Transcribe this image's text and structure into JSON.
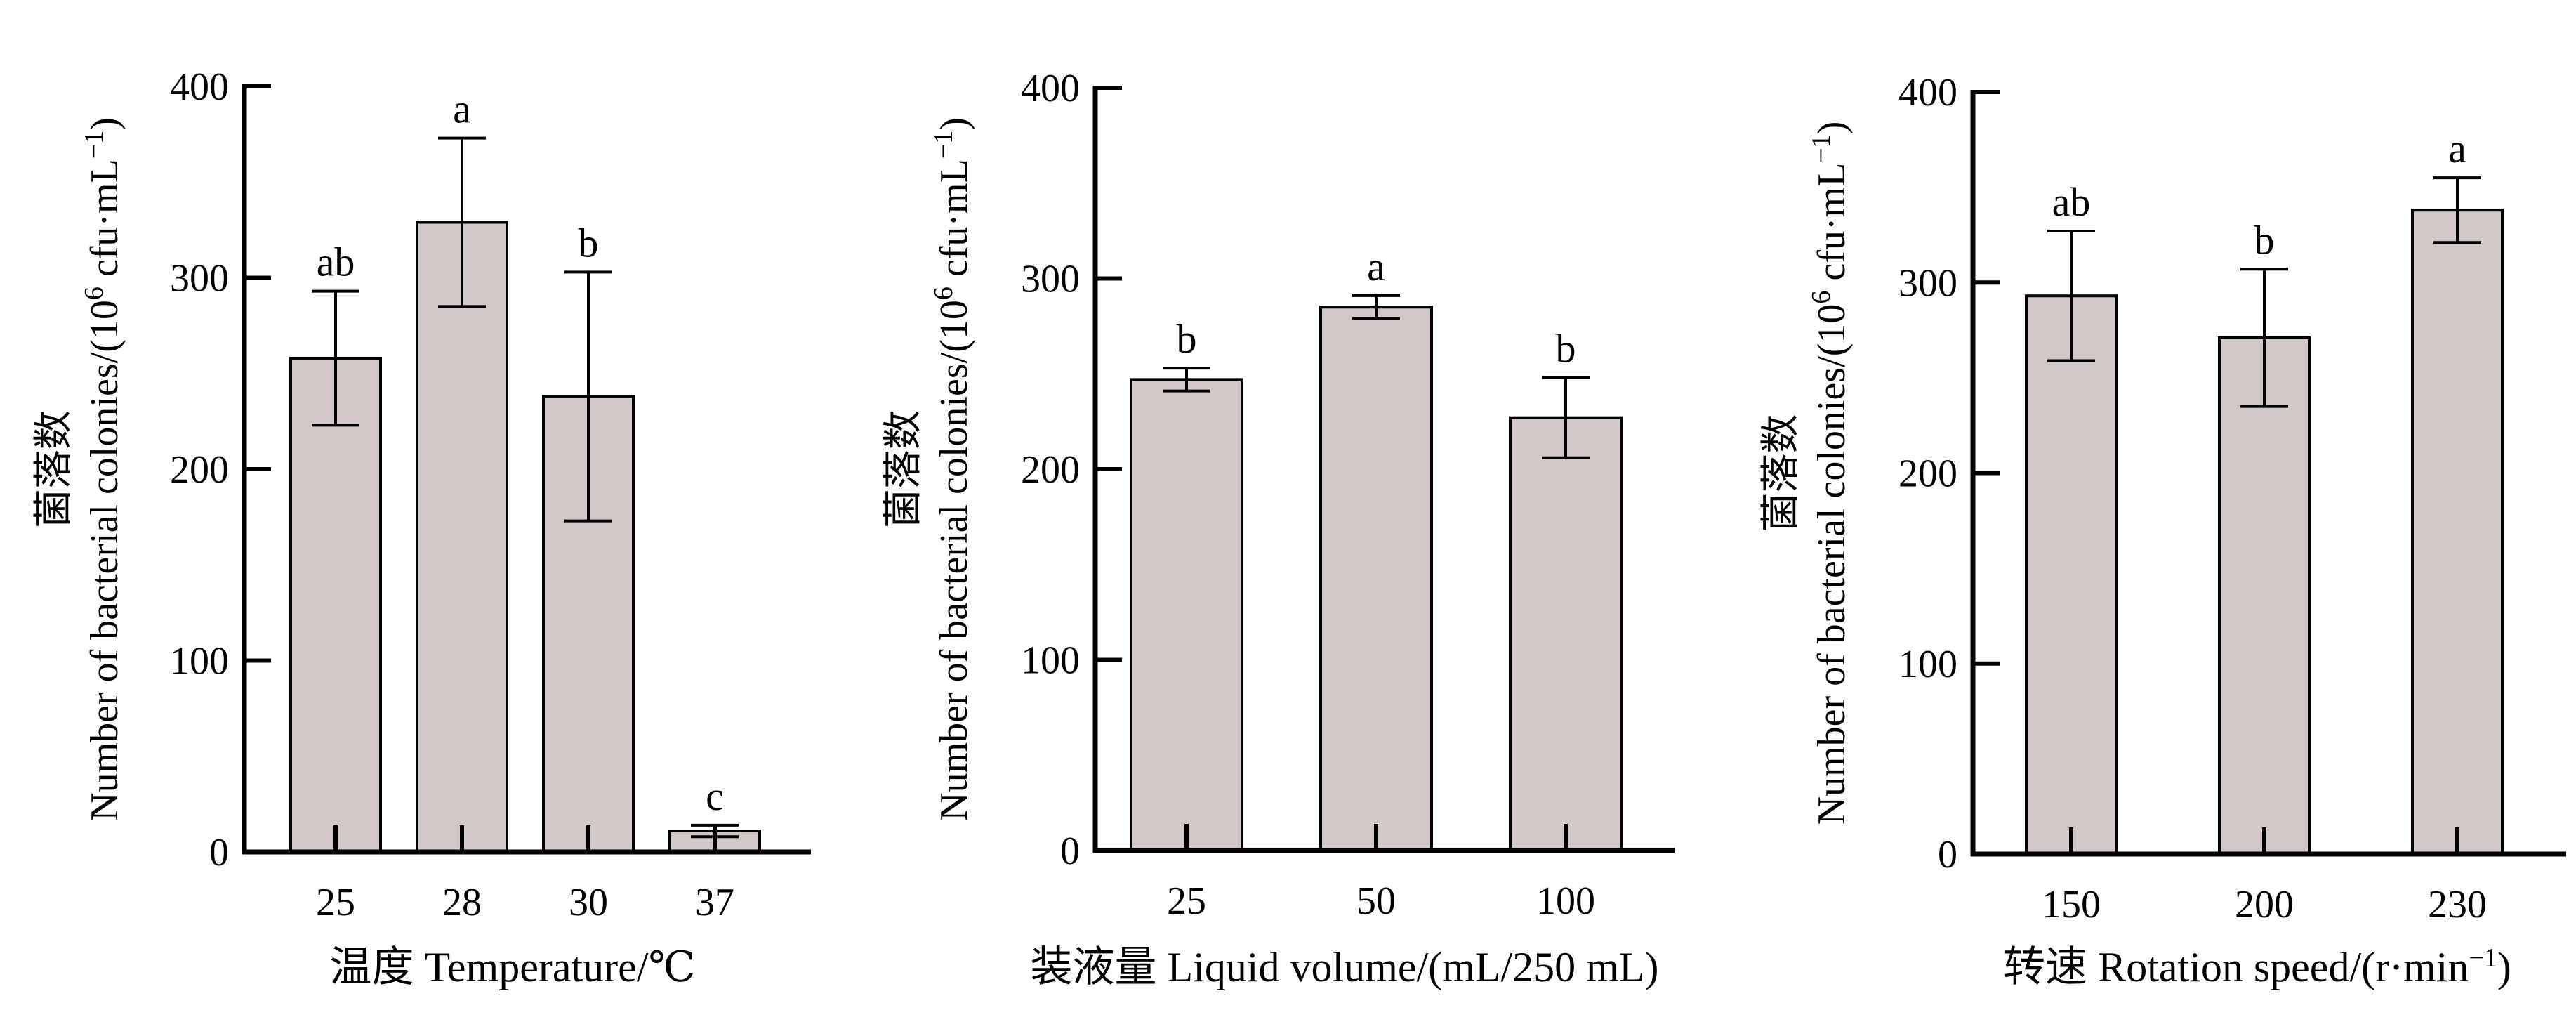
{
  "chart_data": [
    {
      "type": "bar",
      "categories": [
        "25",
        "28",
        "30",
        "37"
      ],
      "values": [
        258,
        329,
        238,
        11
      ],
      "errors": [
        35,
        44,
        65,
        3
      ],
      "labels": [
        "ab",
        "a",
        "b",
        "c"
      ],
      "ylim": [
        0,
        400
      ],
      "yticks": [
        "0",
        "100",
        "200",
        "300",
        "400"
      ],
      "ylabel_cn": "菌落数",
      "ylabel_en": "Number of bacterial colonies/(10",
      "ylabel_exp": "6",
      "ylabel_unit": " cfu·mL",
      "ylabel_unit_exp": "−1",
      "ylabel_close": ")",
      "xlabel": "温度 Temperature/℃"
    },
    {
      "type": "bar",
      "categories": [
        "25",
        "50",
        "100"
      ],
      "values": [
        247,
        285,
        227
      ],
      "errors": [
        6,
        6,
        21
      ],
      "labels": [
        "b",
        "a",
        "b"
      ],
      "ylim": [
        0,
        400
      ],
      "yticks": [
        "0",
        "100",
        "200",
        "300",
        "400"
      ],
      "ylabel_cn": "菌落数",
      "ylabel_en": "Number of bacterial colonies/(10",
      "ylabel_exp": "6",
      "ylabel_unit": " cfu·mL",
      "ylabel_unit_exp": "−1",
      "ylabel_close": ")",
      "xlabel": "装液量 Liquid volume/(mL/250 mL)"
    },
    {
      "type": "bar",
      "categories": [
        "150",
        "200",
        "230"
      ],
      "values": [
        293,
        271,
        338
      ],
      "errors": [
        34,
        36,
        17
      ],
      "labels": [
        "ab",
        "b",
        "a"
      ],
      "ylim": [
        0,
        400
      ],
      "yticks": [
        "0",
        "100",
        "200",
        "300",
        "400"
      ],
      "ylabel_cn": "菌落数",
      "ylabel_en": "Number of bacterial colonies/(10",
      "ylabel_exp": "6",
      "ylabel_unit": " cfu·mL",
      "ylabel_unit_exp": "−1",
      "ylabel_close": ")",
      "xlabel": "转速 Rotation speed/(r·min",
      "xlabel_exp": "−1",
      "xlabel_close": ")"
    }
  ],
  "colors": {
    "bar_fill": "#d2c8c8",
    "bar_stroke": "#000000",
    "axis": "#000000"
  }
}
